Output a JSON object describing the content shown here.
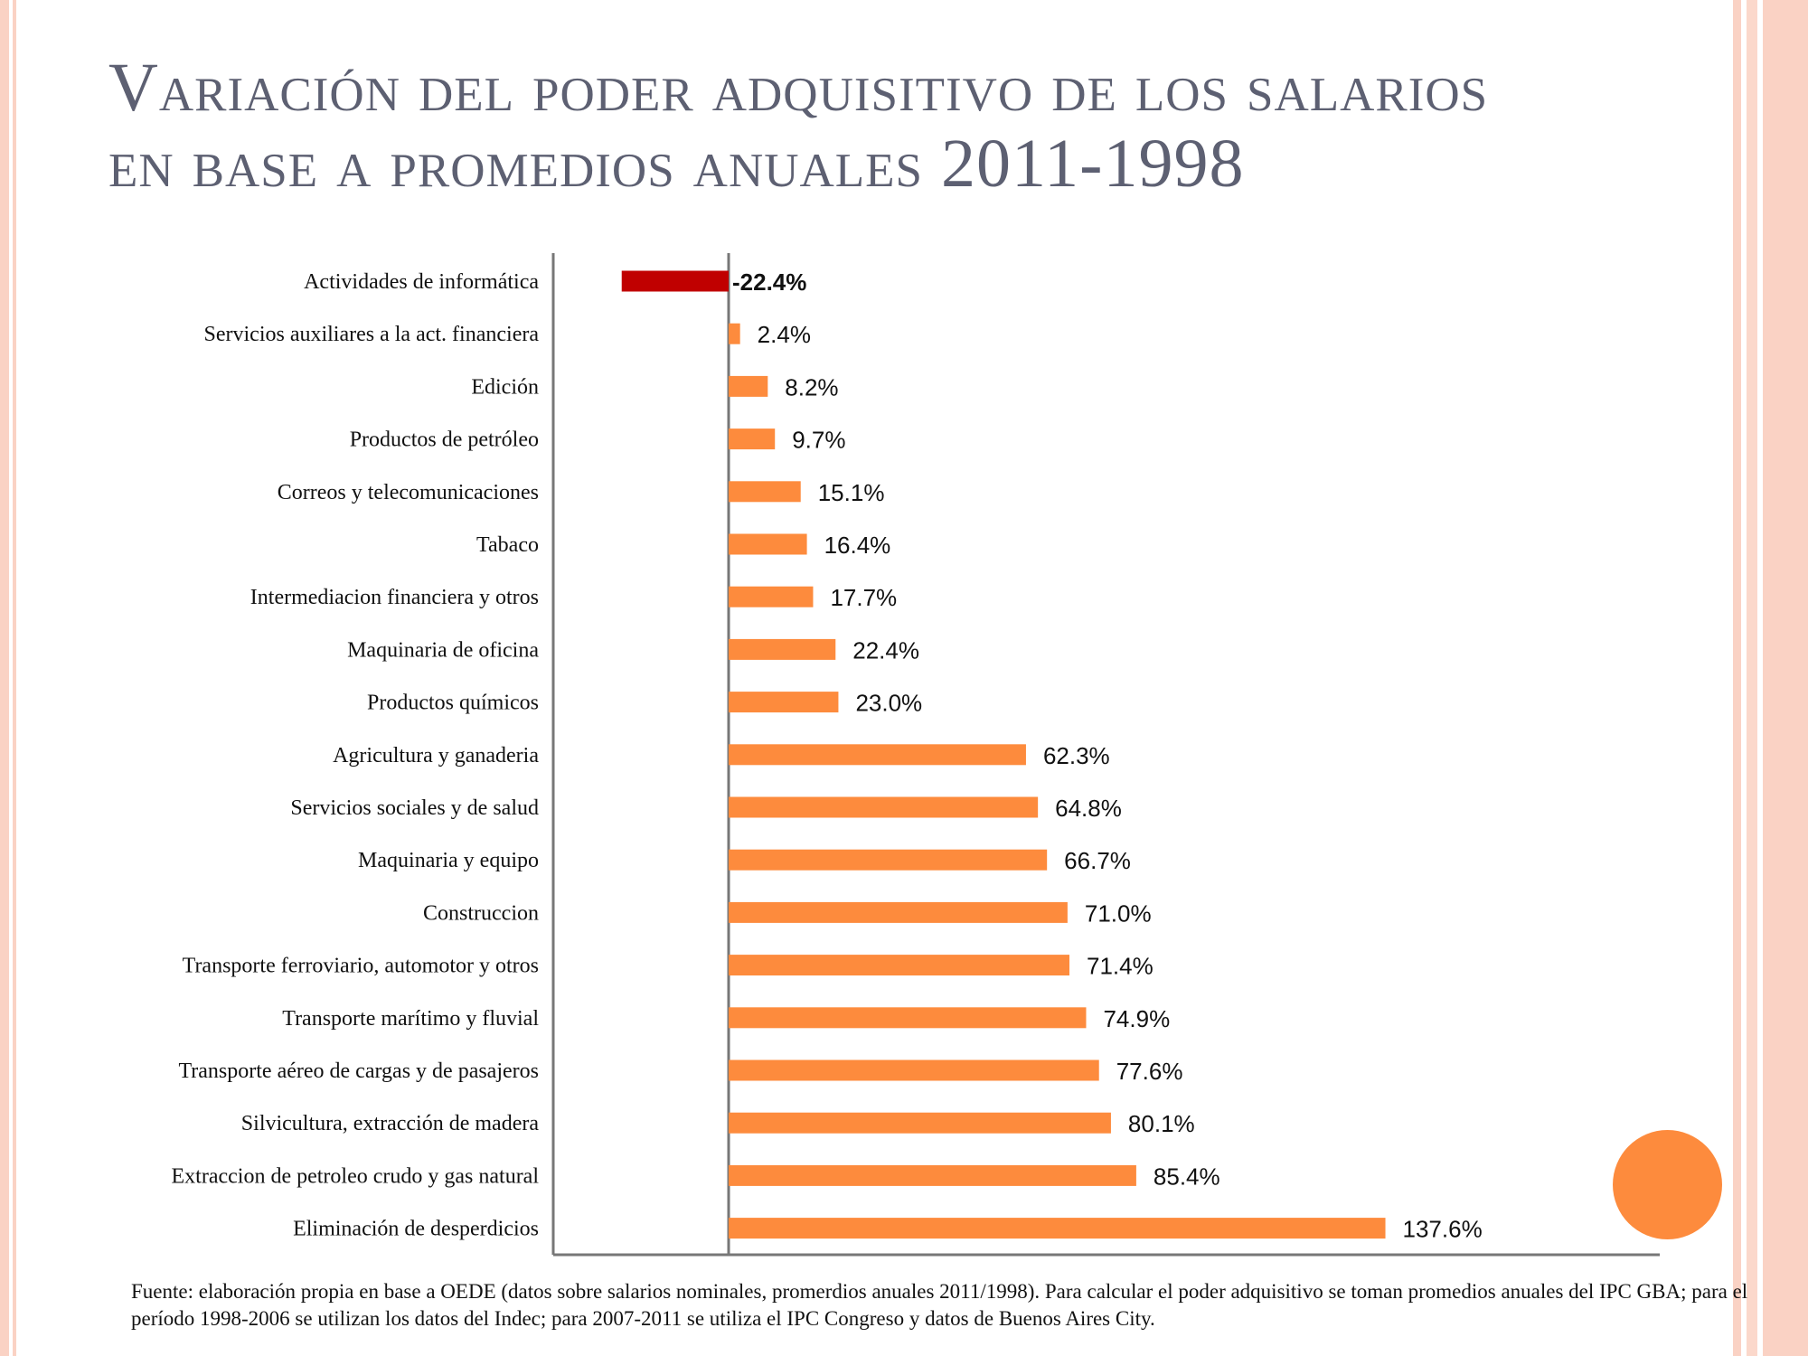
{
  "slide": {
    "title": "Variación del poder adquisitivo de los salarios en base a promedios anuales 2011-1998",
    "footnote": "Fuente: elaboración propia en base a OEDE (datos sobre salarios nominales, promerdios anuales 2011/1998). Para calcular el poder adquisitivo se toman promedios anuales del IPC GBA; para el período 1998-2006 se utilizan los datos del Indec; para 2007-2011 se utiliza el IPC Congreso y datos de Buenos Aires City."
  },
  "chart_data": {
    "type": "bar",
    "orientation": "horizontal",
    "title": "",
    "xlabel": "",
    "ylabel": "",
    "xlim": [
      -35,
      155
    ],
    "grid": false,
    "categories": [
      "Actividades de informática",
      "Servicios auxiliares a la act. financiera",
      "Edición",
      "Productos de petróleo",
      "Correos y telecomunicaciones",
      "Tabaco",
      "Intermediacion financiera y otros",
      "Maquinaria de oficina",
      "Productos químicos",
      "Agricultura y ganaderia",
      "Servicios sociales y de salud",
      "Maquinaria y equipo",
      "Construccion",
      "Transporte ferroviario, automotor y otros",
      "Transporte marítimo y fluvial",
      "Transporte aéreo de cargas y de pasajeros",
      "Silvicultura, extracción de madera",
      "Extraccion de petroleo crudo y gas natural",
      "Eliminación de desperdicios"
    ],
    "values": [
      -22.4,
      2.4,
      8.2,
      9.7,
      15.1,
      16.4,
      17.7,
      22.4,
      23.0,
      62.3,
      64.8,
      66.7,
      71.0,
      71.4,
      74.9,
      77.6,
      80.1,
      85.4,
      137.6
    ],
    "value_labels": [
      "-22.4%",
      "2.4%",
      "8.2%",
      "9.7%",
      "15.1%",
      "16.4%",
      "17.7%",
      "22.4%",
      "23.0%",
      "62.3%",
      "64.8%",
      "66.7%",
      "71.0%",
      "71.4%",
      "74.9%",
      "77.6%",
      "80.1%",
      "85.4%",
      "137.6%"
    ],
    "colors": {
      "positive": "#fd8b3d",
      "negative": "#c00000",
      "axis": "#777777"
    }
  },
  "decoration": {
    "circle_color": "#fd8b3d"
  }
}
